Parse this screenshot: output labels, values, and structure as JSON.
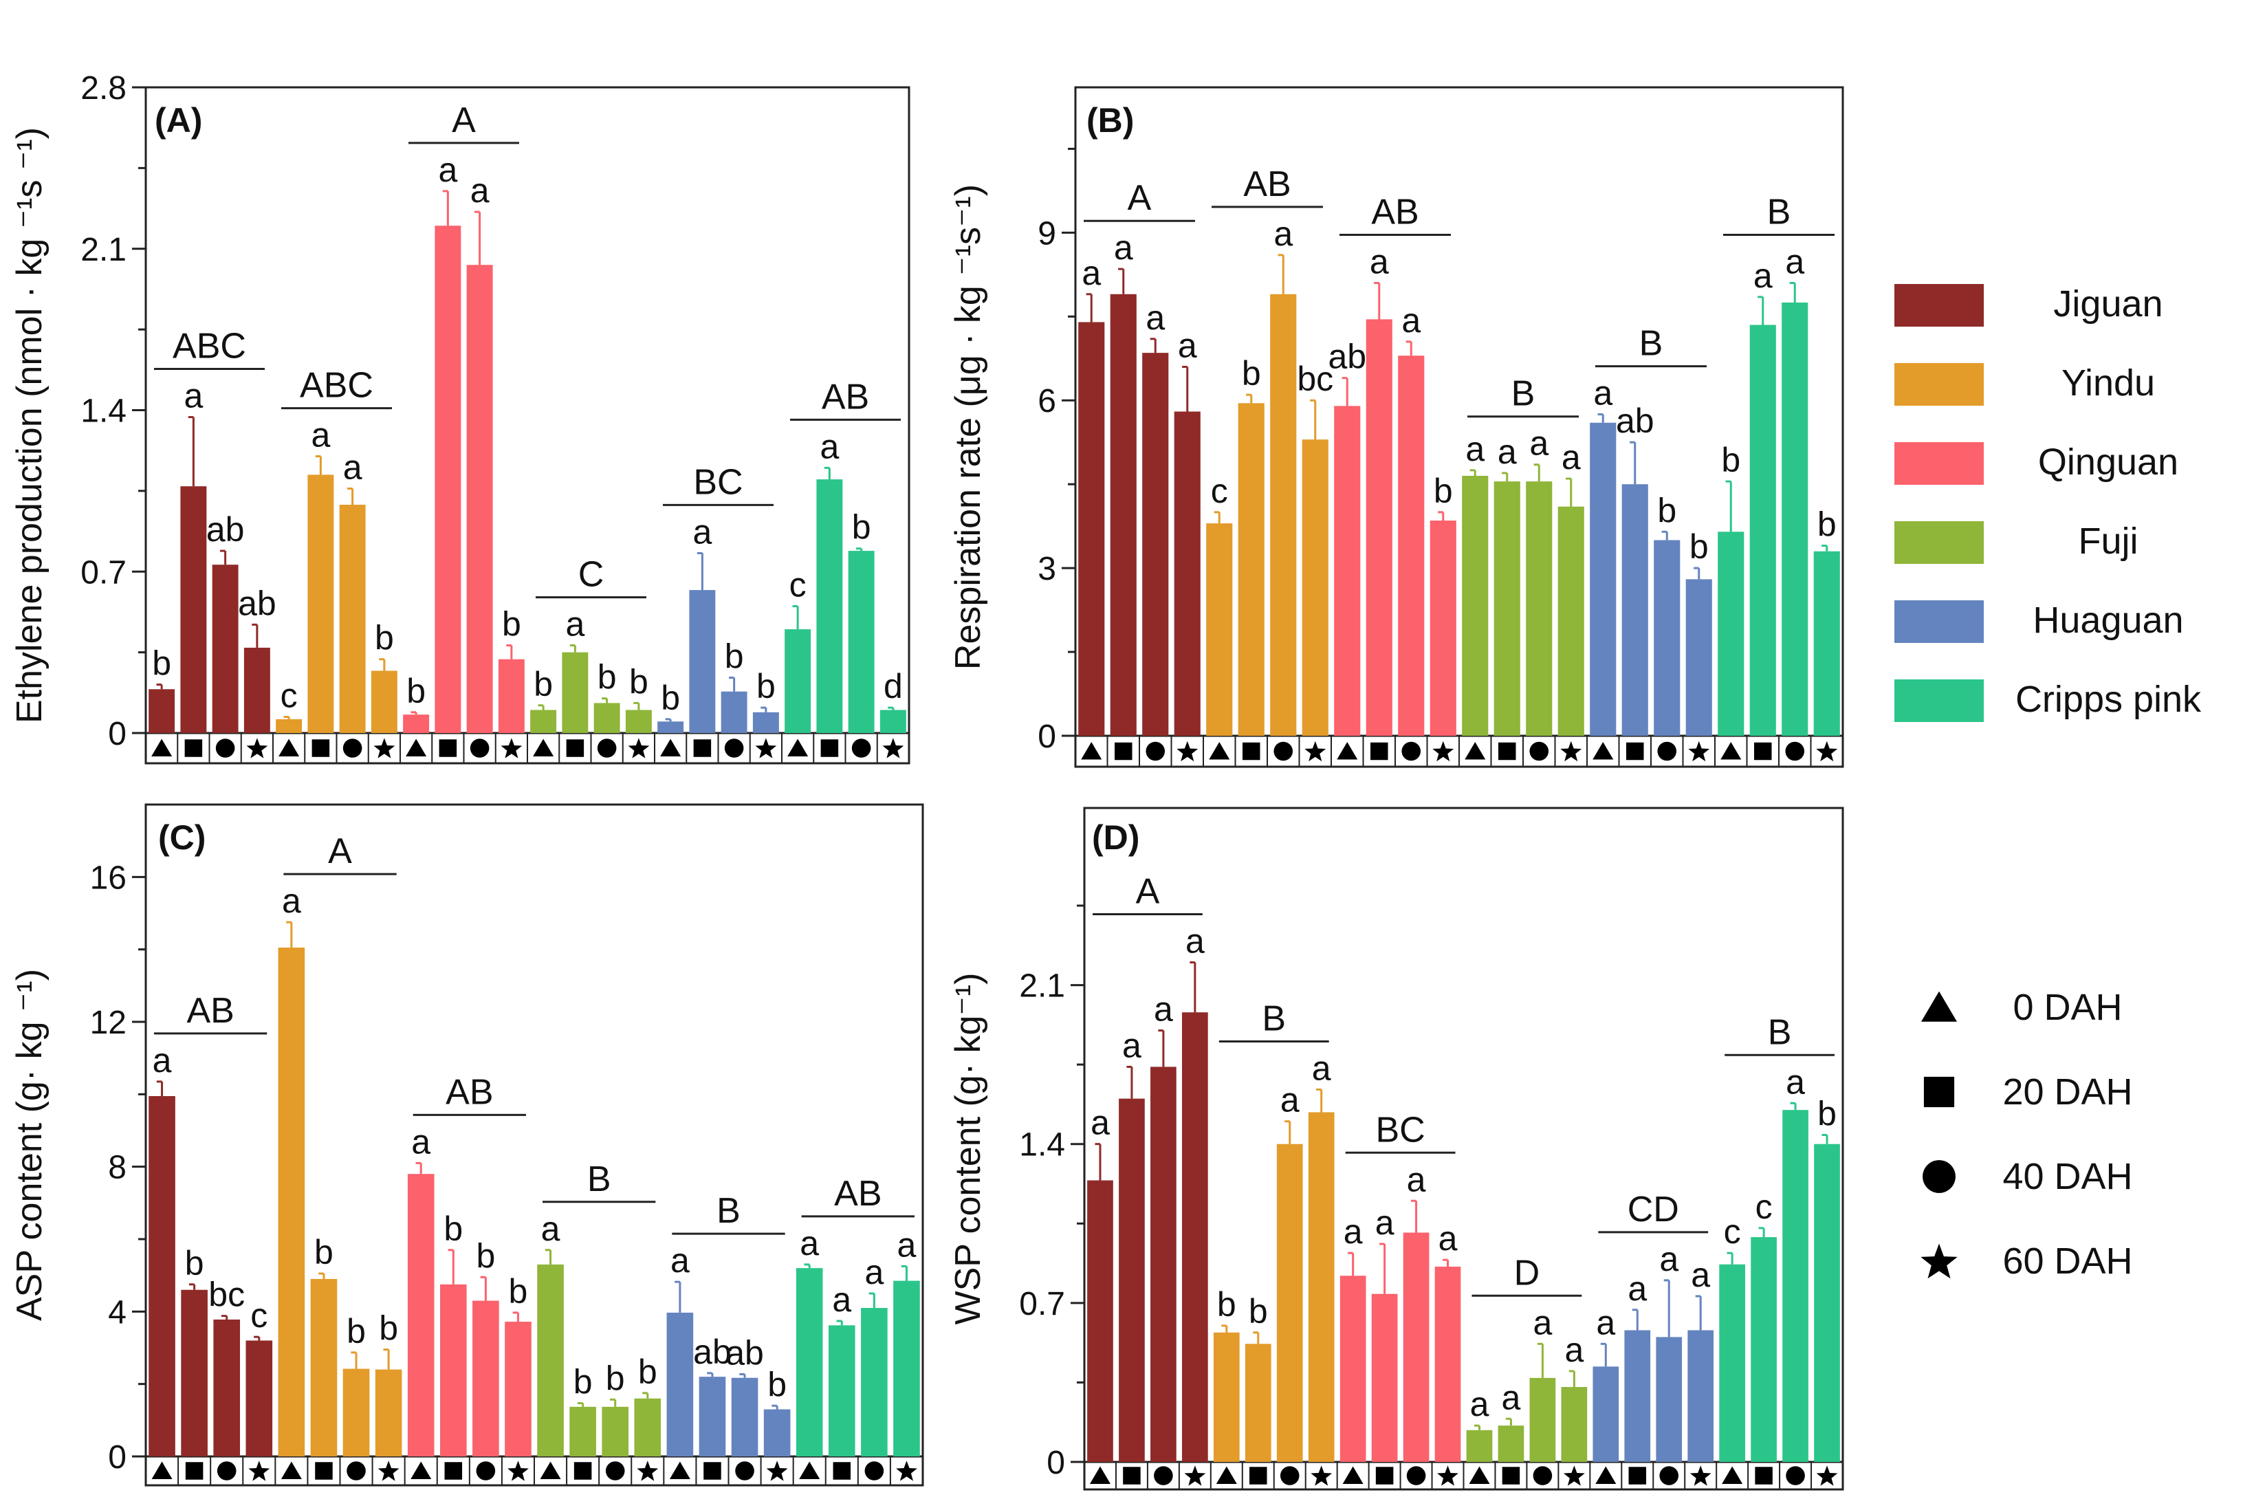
{
  "colors": {
    "Jiguan": "#8f2a28",
    "Yindu": "#e39b2a",
    "Qinguan": "#fb626c",
    "Fuji": "#8fb539",
    "Huaguan": "#6484bf",
    "Cripps pink": "#2bc58a",
    "axis": "#222222"
  },
  "legend": {
    "cultivars": [
      "Jiguan",
      "Yindu",
      "Qinguan",
      "Fuji",
      "Huaguan",
      "Cripps pink"
    ],
    "times": [
      "0 DAH",
      "20 DAH",
      "40 DAH",
      "60 DAH"
    ],
    "time_icons": [
      "triangle-icon",
      "square-icon",
      "circle-icon",
      "star-icon"
    ]
  },
  "chart_data": [
    {
      "type": "bar",
      "panel": "(A)",
      "ylabel": "Ethylene production (nmol · kg ⁻¹s ⁻¹)",
      "ylim": [
        0,
        2.8
      ],
      "yticks": [
        "0",
        "0.7",
        "1.4",
        "2.1",
        "2.8"
      ],
      "cultivars": [
        "Jiguan",
        "Yindu",
        "Qinguan",
        "Fuji",
        "Huaguan",
        "Cripps pink"
      ],
      "times": [
        "0 DAH",
        "20 DAH",
        "40 DAH",
        "60 DAH"
      ],
      "series": [
        {
          "name": "Jiguan",
          "values": [
            0.19,
            1.07,
            0.73,
            0.37
          ],
          "errors": [
            0.02,
            0.3,
            0.06,
            0.1
          ],
          "letters": [
            "b",
            "a",
            "ab",
            "ab"
          ],
          "group": "ABC"
        },
        {
          "name": "Yindu",
          "values": [
            0.06,
            1.12,
            0.99,
            0.27
          ],
          "errors": [
            0.01,
            0.08,
            0.07,
            0.05
          ],
          "letters": [
            "c",
            "a",
            "a",
            "b"
          ],
          "group": "ABC"
        },
        {
          "name": "Qinguan",
          "values": [
            0.08,
            2.2,
            2.03,
            0.32
          ],
          "errors": [
            0.01,
            0.15,
            0.23,
            0.06
          ],
          "letters": [
            "b",
            "a",
            "a",
            "b"
          ],
          "group": "A"
        },
        {
          "name": "Fuji",
          "values": [
            0.1,
            0.35,
            0.13,
            0.1
          ],
          "errors": [
            0.02,
            0.03,
            0.02,
            0.03
          ],
          "letters": [
            "b",
            "a",
            "b",
            "b"
          ],
          "group": "C"
        },
        {
          "name": "Huaguan",
          "values": [
            0.05,
            0.62,
            0.18,
            0.09
          ],
          "errors": [
            0.01,
            0.16,
            0.06,
            0.02
          ],
          "letters": [
            "b",
            "a",
            "b",
            "b"
          ],
          "group": "BC"
        },
        {
          "name": "Cripps pink",
          "values": [
            0.45,
            1.1,
            0.79,
            0.1
          ],
          "errors": [
            0.1,
            0.05,
            0.01,
            0.01
          ],
          "letters": [
            "c",
            "a",
            "b",
            "d"
          ],
          "group": "AB"
        }
      ]
    },
    {
      "type": "bar",
      "panel": "(B)",
      "ylabel": "Respiration rate (μg · kg ⁻¹s⁻¹)",
      "ylim": [
        0,
        11.6
      ],
      "yticks": [
        "0",
        "3",
        "6",
        "9"
      ],
      "cultivars": [
        "Jiguan",
        "Yindu",
        "Qinguan",
        "Fuji",
        "Huaguan",
        "Cripps pink"
      ],
      "times": [
        "0 DAH",
        "20 DAH",
        "40 DAH",
        "60 DAH"
      ],
      "series": [
        {
          "name": "Jiguan",
          "values": [
            7.4,
            7.9,
            6.85,
            5.8
          ],
          "errors": [
            0.5,
            0.45,
            0.25,
            0.8
          ],
          "letters": [
            "a",
            "a",
            "a",
            "a"
          ],
          "group": "A"
        },
        {
          "name": "Yindu",
          "values": [
            3.8,
            5.95,
            7.9,
            5.3
          ],
          "errors": [
            0.2,
            0.15,
            0.7,
            0.7
          ],
          "letters": [
            "c",
            "b",
            "a",
            "bc"
          ],
          "group": "AB"
        },
        {
          "name": "Qinguan",
          "values": [
            5.9,
            7.45,
            6.8,
            3.85
          ],
          "errors": [
            0.5,
            0.65,
            0.25,
            0.15
          ],
          "letters": [
            "ab",
            "a",
            "a",
            "b"
          ],
          "group": "AB"
        },
        {
          "name": "Fuji",
          "values": [
            4.65,
            4.55,
            4.55,
            4.1
          ],
          "errors": [
            0.1,
            0.15,
            0.3,
            0.5
          ],
          "letters": [
            "a",
            "a",
            "a",
            "a"
          ],
          "group": "B"
        },
        {
          "name": "Huaguan",
          "values": [
            5.6,
            4.5,
            3.5,
            2.8
          ],
          "errors": [
            0.15,
            0.75,
            0.15,
            0.2
          ],
          "letters": [
            "a",
            "ab",
            "b",
            "b"
          ],
          "group": "B"
        },
        {
          "name": "Cripps pink",
          "values": [
            3.65,
            7.35,
            7.75,
            3.3
          ],
          "errors": [
            0.9,
            0.5,
            0.35,
            0.1
          ],
          "letters": [
            "b",
            "a",
            "a",
            "b"
          ],
          "group": "B"
        }
      ]
    },
    {
      "type": "bar",
      "panel": "(C)",
      "ylabel": "ASP content (g· kg ⁻¹)",
      "ylim": [
        0,
        18
      ],
      "yticks": [
        "0",
        "4",
        "8",
        "12",
        "16"
      ],
      "cultivars": [
        "Jiguan",
        "Yindu",
        "Qinguan",
        "Fuji",
        "Huaguan",
        "Cripps pink"
      ],
      "times": [
        "0 DAH",
        "20 DAH",
        "40 DAH",
        "60 DAH"
      ],
      "series": [
        {
          "name": "Jiguan",
          "values": [
            9.95,
            4.6,
            3.78,
            3.2
          ],
          "errors": [
            0.4,
            0.15,
            0.1,
            0.1
          ],
          "letters": [
            "a",
            "b",
            "bc",
            "c"
          ],
          "group": "AB"
        },
        {
          "name": "Yindu",
          "values": [
            14.05,
            4.9,
            2.42,
            2.4
          ],
          "errors": [
            0.7,
            0.15,
            0.45,
            0.55
          ],
          "letters": [
            "a",
            "b",
            "b",
            "b"
          ],
          "group": "A"
        },
        {
          "name": "Qinguan",
          "values": [
            7.8,
            4.75,
            4.3,
            3.72
          ],
          "errors": [
            0.3,
            0.95,
            0.65,
            0.25
          ],
          "letters": [
            "a",
            "b",
            "b",
            "b"
          ],
          "group": "AB"
        },
        {
          "name": "Fuji",
          "values": [
            5.3,
            1.37,
            1.37,
            1.6
          ],
          "errors": [
            0.4,
            0.1,
            0.2,
            0.15
          ],
          "letters": [
            "a",
            "b",
            "b",
            "b"
          ],
          "group": "B"
        },
        {
          "name": "Huaguan",
          "values": [
            3.97,
            2.2,
            2.17,
            1.3
          ],
          "errors": [
            0.85,
            0.1,
            0.1,
            0.1
          ],
          "letters": [
            "a",
            "ab",
            "ab",
            "b"
          ],
          "group": "B"
        },
        {
          "name": "Cripps pink",
          "values": [
            5.2,
            3.62,
            4.1,
            4.85
          ],
          "errors": [
            0.1,
            0.12,
            0.4,
            0.4
          ],
          "letters": [
            "a",
            "a",
            "a",
            "a"
          ],
          "group": "AB"
        }
      ]
    },
    {
      "type": "bar",
      "panel": "(D)",
      "ylabel": "WSP content (g· kg⁻¹)",
      "ylim": [
        0,
        2.88
      ],
      "yticks": [
        "0",
        "0.7",
        "1.4",
        "2.1"
      ],
      "cultivars": [
        "Jiguan",
        "Yindu",
        "Qinguan",
        "Fuji",
        "Huaguan",
        "Cripps pink"
      ],
      "times": [
        "0 DAH",
        "20 DAH",
        "40 DAH",
        "60 DAH"
      ],
      "series": [
        {
          "name": "Jiguan",
          "values": [
            1.24,
            1.6,
            1.74,
            1.98
          ],
          "errors": [
            0.16,
            0.14,
            0.16,
            0.22
          ],
          "letters": [
            "a",
            "a",
            "a",
            "a"
          ],
          "group": "A"
        },
        {
          "name": "Yindu",
          "values": [
            0.57,
            0.52,
            1.4,
            1.54
          ],
          "errors": [
            0.03,
            0.05,
            0.1,
            0.1
          ],
          "letters": [
            "b",
            "b",
            "a",
            "a"
          ],
          "group": "B"
        },
        {
          "name": "Qinguan",
          "values": [
            0.82,
            0.74,
            1.01,
            0.86
          ],
          "errors": [
            0.1,
            0.22,
            0.14,
            0.03
          ],
          "letters": [
            "a",
            "a",
            "a",
            "a"
          ],
          "group": "BC"
        },
        {
          "name": "Fuji",
          "values": [
            0.14,
            0.16,
            0.37,
            0.33
          ],
          "errors": [
            0.02,
            0.03,
            0.15,
            0.07
          ],
          "letters": [
            "a",
            "a",
            "a",
            "a"
          ],
          "group": "D"
        },
        {
          "name": "Huaguan",
          "values": [
            0.42,
            0.58,
            0.55,
            0.58
          ],
          "errors": [
            0.1,
            0.09,
            0.25,
            0.15
          ],
          "letters": [
            "a",
            "a",
            "a",
            "a"
          ],
          "group": "CD"
        },
        {
          "name": "Cripps pink",
          "values": [
            0.87,
            0.99,
            1.55,
            1.4
          ],
          "errors": [
            0.05,
            0.04,
            0.03,
            0.04
          ],
          "letters": [
            "c",
            "c",
            "a",
            "b"
          ],
          "group": "B"
        }
      ]
    }
  ]
}
